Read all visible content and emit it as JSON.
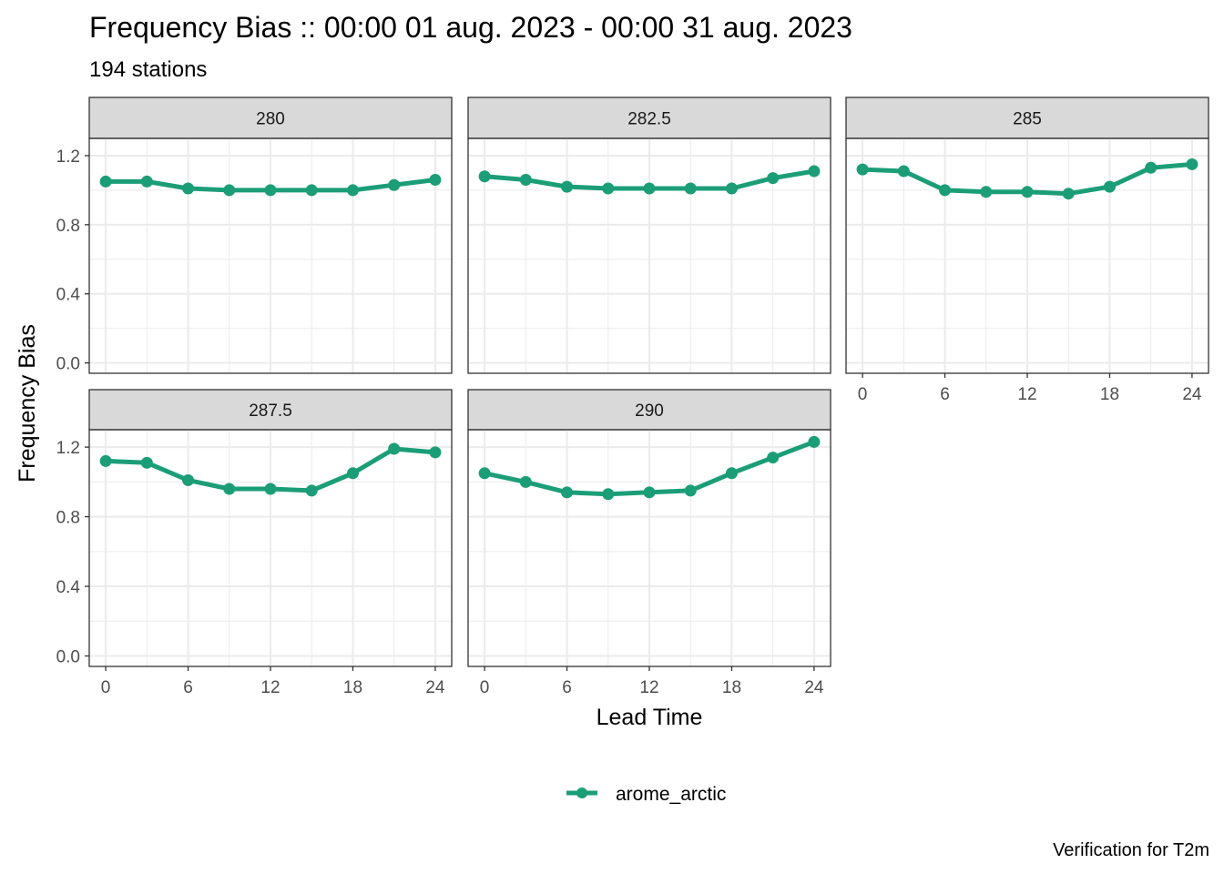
{
  "chart_data": {
    "type": "line",
    "title": "Frequency Bias :: 00:00 01 aug. 2023 - 00:00 31 aug. 2023",
    "subtitle": "194 stations",
    "xlabel": "Lead Time",
    "ylabel": "Frequency Bias",
    "caption": "Verification for T2m",
    "x_ticks": [
      0,
      6,
      12,
      18,
      24
    ],
    "y_ticks": [
      0.0,
      0.4,
      0.8,
      1.2
    ],
    "y_tick_labels": [
      "0.0",
      "0.4",
      "0.8",
      "1.2"
    ],
    "xlim": [
      -1.2,
      25.2
    ],
    "ylim": [
      -0.06,
      1.3
    ],
    "grid": true,
    "legend_position": "bottom",
    "legend": [
      {
        "name": "arome_arctic",
        "color": "#1b9e77"
      }
    ],
    "x": [
      0,
      3,
      6,
      9,
      12,
      15,
      18,
      21,
      24
    ],
    "panels": [
      {
        "label": "280",
        "series": [
          {
            "name": "arome_arctic",
            "values": [
              1.05,
              1.05,
              1.01,
              1.0,
              1.0,
              1.0,
              1.0,
              1.03,
              1.06
            ]
          }
        ]
      },
      {
        "label": "282.5",
        "series": [
          {
            "name": "arome_arctic",
            "values": [
              1.08,
              1.06,
              1.02,
              1.01,
              1.01,
              1.01,
              1.01,
              1.07,
              1.11
            ]
          }
        ]
      },
      {
        "label": "285",
        "series": [
          {
            "name": "arome_arctic",
            "values": [
              1.12,
              1.11,
              1.0,
              0.99,
              0.99,
              0.98,
              1.02,
              1.13,
              1.15
            ]
          }
        ]
      },
      {
        "label": "287.5",
        "series": [
          {
            "name": "arome_arctic",
            "values": [
              1.12,
              1.11,
              1.01,
              0.96,
              0.96,
              0.95,
              1.05,
              1.19,
              1.17
            ]
          }
        ]
      },
      {
        "label": "290",
        "series": [
          {
            "name": "arome_arctic",
            "values": [
              1.05,
              1.0,
              0.94,
              0.93,
              0.94,
              0.95,
              1.05,
              1.14,
              1.23
            ]
          }
        ]
      }
    ]
  }
}
